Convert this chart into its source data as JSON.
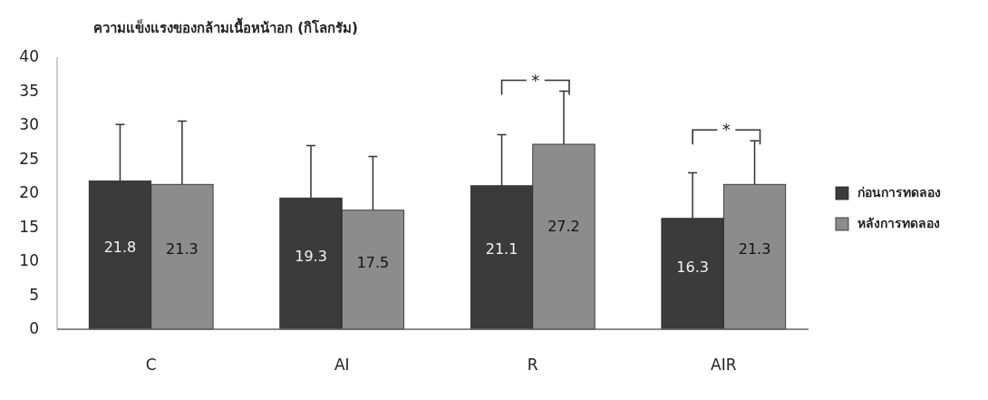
{
  "chart_data": {
    "type": "bar",
    "title": "ความแข็งแรงของกล้ามเนื้อหน้าอก (กิโลกรัม)",
    "categories": [
      "C",
      "AI",
      "R",
      "AIR"
    ],
    "series": [
      {
        "name": "ก่อนการทดลอง",
        "color": "#3b3b3b",
        "values": [
          21.8,
          19.3,
          21.1,
          16.3
        ],
        "errors": [
          [
            21.8,
            30.1
          ],
          [
            19.3,
            27.0
          ],
          [
            21.1,
            28.6
          ],
          [
            16.3,
            23.0
          ]
        ]
      },
      {
        "name": "หลังการทดลอง",
        "color": "#8c8c8c",
        "values": [
          21.3,
          17.5,
          27.2,
          21.3
        ],
        "errors": [
          [
            21.3,
            30.6
          ],
          [
            17.5,
            25.4
          ],
          [
            27.2,
            35.0
          ],
          [
            21.3,
            27.7
          ]
        ]
      }
    ],
    "ylim": [
      0,
      40
    ],
    "yticks": [
      0,
      5,
      10,
      15,
      20,
      25,
      30,
      35,
      40
    ],
    "grid": false,
    "legend": "right",
    "data_labels": true,
    "annotations": [
      "*",
      "*"
    ]
  }
}
